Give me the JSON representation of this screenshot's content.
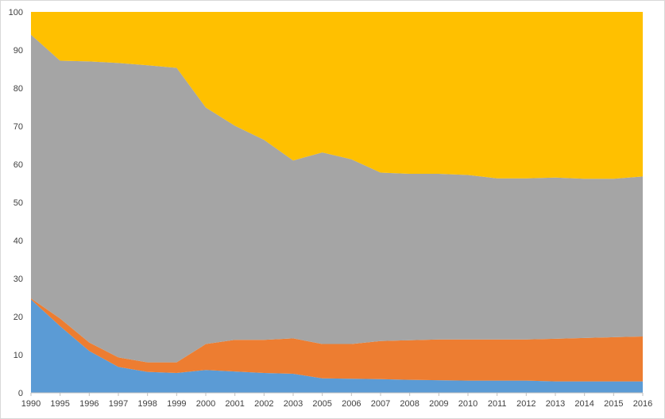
{
  "chart_data": {
    "type": "area",
    "stacked": true,
    "categories": [
      "1990",
      "1995",
      "1996",
      "1997",
      "1998",
      "1999",
      "2000",
      "2001",
      "2002",
      "2003",
      "2005",
      "2006",
      "2007",
      "2008",
      "2009",
      "2010",
      "2011",
      "2012",
      "2013",
      "2014",
      "2015",
      "2016"
    ],
    "series": [
      {
        "color": "#5b9bd5",
        "values": [
          24.5,
          17.5,
          11,
          6.8,
          5.5,
          5.2,
          6.0,
          5.6,
          5.2,
          5.0,
          3.8,
          3.7,
          3.6,
          3.4,
          3.3,
          3.2,
          3.2,
          3.2,
          3.0,
          3.0,
          3.0,
          3.0
        ]
      },
      {
        "color": "#ed7d31",
        "values": [
          0.3,
          2.0,
          2.2,
          2.5,
          2.5,
          2.8,
          6.8,
          8.3,
          8.7,
          9.3,
          9.0,
          9.1,
          10.0,
          10.4,
          10.7,
          10.8,
          10.8,
          10.8,
          11.2,
          11.4,
          11.6,
          11.8
        ]
      },
      {
        "color": "#a5a5a5",
        "values": [
          69.2,
          67.7,
          73.8,
          77.3,
          78.0,
          77.3,
          62.1,
          56.2,
          52.5,
          46.7,
          50.3,
          48.5,
          44.2,
          43.7,
          43.5,
          43.2,
          42.3,
          42.3,
          42.3,
          41.8,
          41.6,
          42.0
        ]
      },
      {
        "color": "#ffc000",
        "values": [
          6.0,
          12.8,
          13.0,
          13.4,
          14.0,
          14.7,
          25.1,
          29.9,
          33.6,
          39.0,
          36.9,
          38.7,
          42.2,
          42.5,
          42.5,
          42.8,
          43.7,
          43.7,
          43.5,
          43.8,
          43.8,
          43.2
        ]
      }
    ],
    "y_ticks": [
      "0",
      "10",
      "20",
      "30",
      "40",
      "50",
      "60",
      "70",
      "80",
      "90",
      "100"
    ],
    "ylim": [
      0,
      100
    ],
    "grid": false,
    "legend": "none"
  }
}
